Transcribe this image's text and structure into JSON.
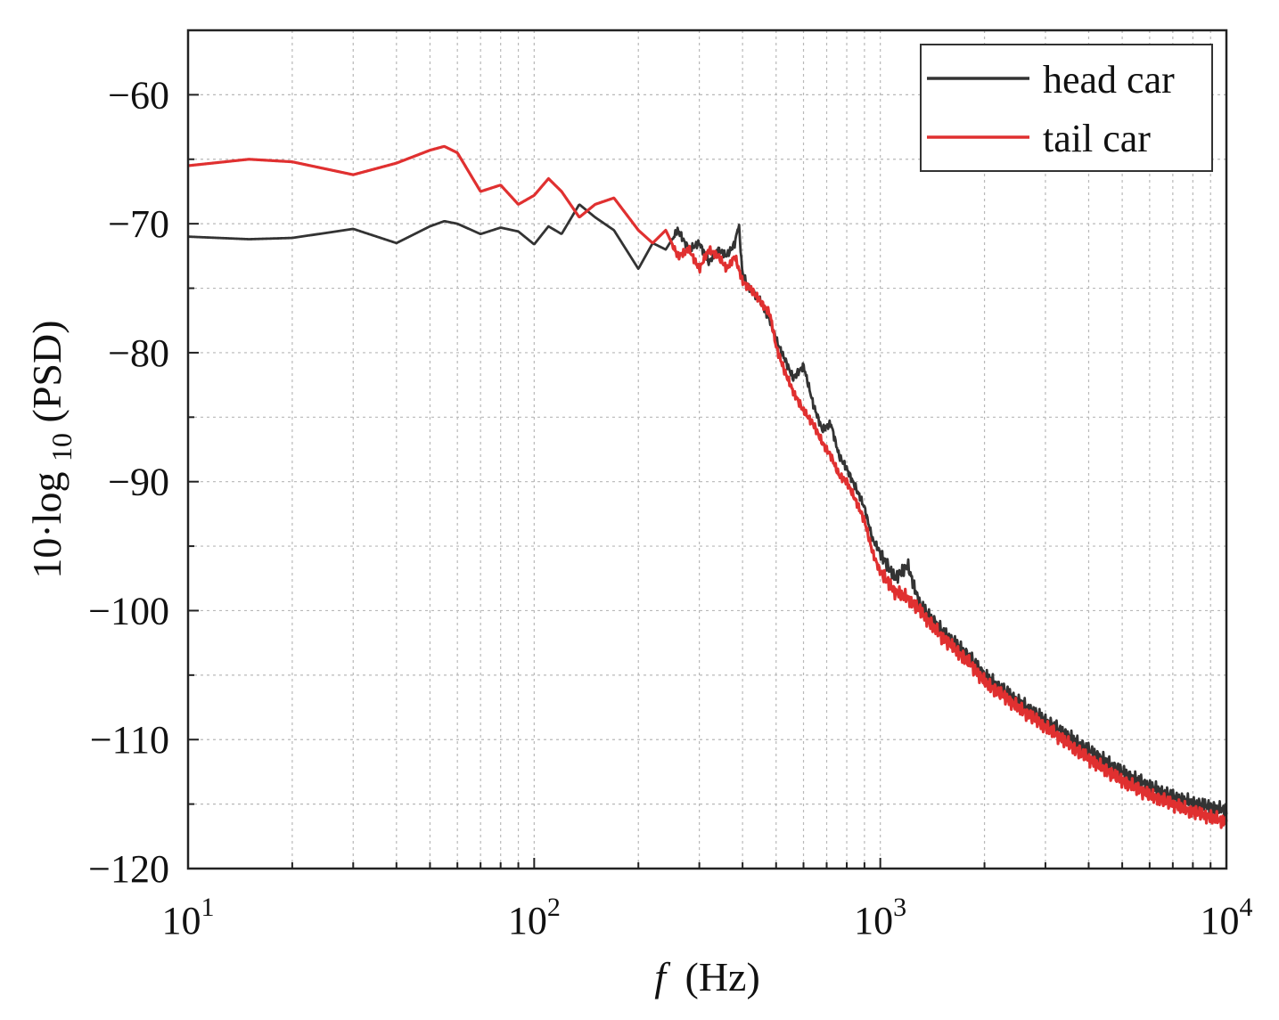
{
  "chart_data": {
    "type": "line",
    "title": "",
    "xlabel": "f (Hz)",
    "xlabel_var": "f",
    "xlabel_unit": "(Hz)",
    "ylabel": "10·log10(PSD)",
    "ylabel_prefix": "10·log",
    "ylabel_sub": "10",
    "ylabel_suffix": "(PSD)",
    "x_scale": "log",
    "xlim": [
      10,
      10000
    ],
    "ylim": [
      -120,
      -55
    ],
    "x_ticks": [
      {
        "base": "10",
        "exp": "1",
        "value": 10
      },
      {
        "base": "10",
        "exp": "2",
        "value": 100
      },
      {
        "base": "10",
        "exp": "3",
        "value": 1000
      },
      {
        "base": "10",
        "exp": "4",
        "value": 10000
      }
    ],
    "y_ticks": [
      {
        "label": "−60",
        "value": -60
      },
      {
        "label": "−70",
        "value": -70
      },
      {
        "label": "−80",
        "value": -80
      },
      {
        "label": "−90",
        "value": -90
      },
      {
        "label": "−100",
        "value": -100
      },
      {
        "label": "−110",
        "value": -110
      },
      {
        "label": "−120",
        "value": -120
      }
    ],
    "grid": true,
    "legend_position": "top-right",
    "series": [
      {
        "name": "head car",
        "color": "#333333",
        "x": [
          10,
          15,
          20,
          30,
          40,
          50,
          55,
          60,
          70,
          80,
          90,
          100,
          110,
          120,
          135,
          150,
          170,
          200,
          220,
          240,
          260,
          280,
          300,
          320,
          340,
          360,
          380,
          390,
          400,
          420,
          450,
          480,
          500,
          530,
          560,
          600,
          640,
          680,
          720,
          760,
          800,
          850,
          900,
          950,
          1000,
          1100,
          1200,
          1300,
          1500,
          1800,
          2000,
          2500,
          3000,
          4000,
          5000,
          6000,
          7000,
          8000,
          9000,
          10000
        ],
        "y": [
          -71.0,
          -71.2,
          -71.1,
          -70.4,
          -71.5,
          -70.2,
          -69.8,
          -70.0,
          -70.8,
          -70.3,
          -70.6,
          -71.6,
          -70.2,
          -70.8,
          -68.5,
          -69.5,
          -70.5,
          -73.5,
          -71.5,
          -72.0,
          -70.5,
          -72.0,
          -71.5,
          -73.0,
          -72.0,
          -72.5,
          -71.5,
          -70.0,
          -74.0,
          -75.0,
          -76.0,
          -77.5,
          -79.0,
          -80.5,
          -82.0,
          -81.0,
          -84.0,
          -86.0,
          -85.5,
          -88.0,
          -89.0,
          -90.5,
          -92.0,
          -94.5,
          -95.5,
          -97.5,
          -96.5,
          -99.5,
          -101.5,
          -103.5,
          -105.0,
          -107.0,
          -108.5,
          -110.8,
          -112.5,
          -113.6,
          -114.4,
          -114.9,
          -115.2,
          -115.5
        ]
      },
      {
        "name": "tail car",
        "color": "#e03030",
        "x": [
          10,
          15,
          20,
          30,
          40,
          50,
          55,
          60,
          70,
          80,
          90,
          100,
          110,
          120,
          135,
          150,
          170,
          200,
          220,
          240,
          260,
          280,
          300,
          320,
          340,
          360,
          380,
          400,
          420,
          450,
          480,
          500,
          530,
          560,
          600,
          640,
          680,
          720,
          760,
          800,
          850,
          900,
          950,
          1000,
          1100,
          1200,
          1300,
          1500,
          1800,
          2000,
          2500,
          3000,
          4000,
          5000,
          6000,
          7000,
          8000,
          9000,
          10000
        ],
        "y": [
          -65.5,
          -65.0,
          -65.2,
          -66.2,
          -65.3,
          -64.3,
          -64.0,
          -64.5,
          -67.5,
          -67.0,
          -68.5,
          -67.8,
          -66.5,
          -67.5,
          -69.5,
          -68.5,
          -68.0,
          -70.5,
          -71.5,
          -70.5,
          -72.5,
          -72.0,
          -73.5,
          -72.0,
          -72.5,
          -73.5,
          -72.5,
          -74.5,
          -75.0,
          -76.0,
          -77.0,
          -79.5,
          -81.5,
          -83.0,
          -84.5,
          -85.5,
          -87.0,
          -88.0,
          -89.5,
          -90.0,
          -91.5,
          -93.0,
          -95.5,
          -97.0,
          -98.5,
          -99.0,
          -100.0,
          -102.0,
          -104.0,
          -105.5,
          -107.5,
          -109.0,
          -111.5,
          -113.2,
          -114.3,
          -115.0,
          -115.6,
          -116.0,
          -116.4
        ]
      }
    ]
  }
}
